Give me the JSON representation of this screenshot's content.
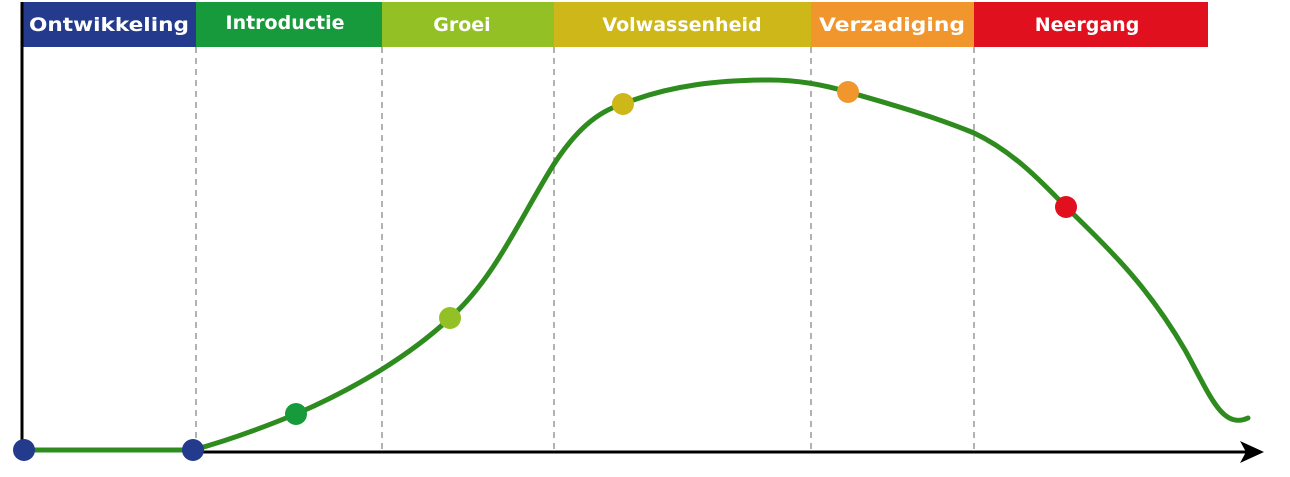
{
  "phases": [
    {
      "label": "Ontwikkeling",
      "color": "#243a8c"
    },
    {
      "label": "Introductie",
      "color": "#179a3c"
    },
    {
      "label": "Groei",
      "color": "#93c024"
    },
    {
      "label": "Volwassenheid",
      "color": "#cdb719"
    },
    {
      "label": "Verzadiging",
      "color": "#f0962d"
    },
    {
      "label": "Neergang",
      "color": "#e0101e"
    }
  ],
  "curve_color": "#2e8b1e",
  "axis_color": "#000000",
  "divider_color": "#888888"
}
